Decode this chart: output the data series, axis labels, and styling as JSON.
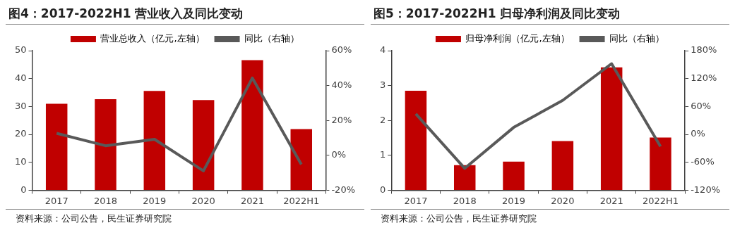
{
  "chart_data": [
    {
      "type": "bar",
      "title": "图4：2017-2022H1 营业收入及同比变动",
      "categories": [
        "2017",
        "2018",
        "2019",
        "2020",
        "2021",
        "2022H1"
      ],
      "series": [
        {
          "name": "营业总收入（亿元,左轴）",
          "color": "#c00000",
          "values": [
            31,
            32.6,
            35.6,
            32.3,
            46.6,
            21.9
          ]
        },
        {
          "name": "同比（右轴）",
          "type": "line",
          "axis": "y2",
          "color": "#595959",
          "values": [
            12.6,
            5.5,
            9.2,
            -8.9,
            44.3,
            -5.2
          ]
        }
      ],
      "ylim": [
        0,
        50
      ],
      "yticks": [
        0,
        10,
        20,
        30,
        40,
        50
      ],
      "y2lim": [
        -20,
        60
      ],
      "y2ticks": [
        {
          "value": -20,
          "label": "-20%"
        },
        {
          "value": 0,
          "label": "0%"
        },
        {
          "value": 20,
          "label": "20%"
        },
        {
          "value": 40,
          "label": "40%"
        },
        {
          "value": 60,
          "label": "60%"
        }
      ],
      "grid": false,
      "legend": "top",
      "marker": "none",
      "annotations": [
        "资料来源：公司公告，民生证券研究院"
      ]
    },
    {
      "type": "bar",
      "title": "图5：2017-2022H1 归母净利润及同比变动",
      "categories": [
        "2017",
        "2018",
        "2019",
        "2020",
        "2021",
        "2022H1"
      ],
      "series": [
        {
          "name": "归母净利润（亿元,左轴）",
          "color": "#c00000",
          "values": [
            2.85,
            0.72,
            0.82,
            1.41,
            3.52,
            1.51
          ]
        },
        {
          "name": "同比（右轴）",
          "type": "line",
          "axis": "y2",
          "color": "#595959",
          "values": [
            44,
            -73,
            15,
            73,
            152,
            -26
          ]
        }
      ],
      "ylim": [
        0,
        4
      ],
      "yticks": [
        0,
        1,
        2,
        3,
        4
      ],
      "y2lim": [
        -120,
        180
      ],
      "y2ticks": [
        {
          "value": -120,
          "label": "-120%"
        },
        {
          "value": -60,
          "label": "-60%"
        },
        {
          "value": 0,
          "label": "0%"
        },
        {
          "value": 60,
          "label": "60%"
        },
        {
          "value": 120,
          "label": "120%"
        },
        {
          "value": 180,
          "label": "180%"
        }
      ],
      "grid": false,
      "legend": "top",
      "marker": "none",
      "annotations": [
        "资料来源：公司公告，民生证券研究院"
      ]
    }
  ]
}
